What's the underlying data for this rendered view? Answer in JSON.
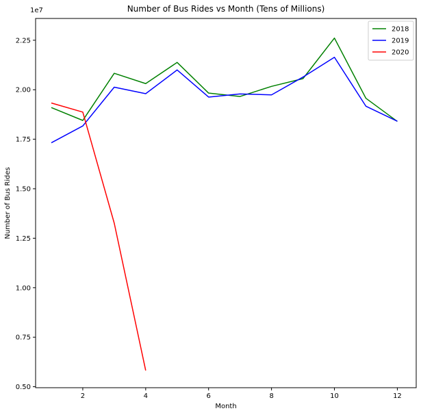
{
  "chart_data": {
    "type": "line",
    "title": "Number of Bus Rides vs Month (Tens of Millions)",
    "xlabel": "Month",
    "ylabel": "Number of Bus Rides",
    "y_offset_text": "1e7",
    "xlim": [
      0.5,
      12.6
    ],
    "ylim": [
      4950000,
      23600000
    ],
    "xticks": [
      2,
      4,
      6,
      8,
      10,
      12
    ],
    "yticks": [
      5000000,
      7500000,
      10000000,
      12500000,
      15000000,
      17500000,
      20000000,
      22500000
    ],
    "yticklabels": [
      "0.50",
      "0.75",
      "1.00",
      "1.25",
      "1.50",
      "1.75",
      "2.00",
      "2.25"
    ],
    "grid": false,
    "legend_position": "top-right",
    "series": [
      {
        "name": "2018",
        "color": "#008000",
        "x": [
          1,
          2,
          3,
          4,
          5,
          6,
          7,
          8,
          9,
          10,
          11,
          12
        ],
        "values": [
          19100000,
          18450000,
          20830000,
          20310000,
          21380000,
          19830000,
          19660000,
          20170000,
          20560000,
          22610000,
          19570000,
          18400000
        ]
      },
      {
        "name": "2019",
        "color": "#0000ff",
        "x": [
          1,
          2,
          3,
          4,
          5,
          6,
          7,
          8,
          9,
          10,
          11,
          12
        ],
        "values": [
          17320000,
          18170000,
          20130000,
          19800000,
          21000000,
          19630000,
          19790000,
          19740000,
          20640000,
          21640000,
          19170000,
          18410000
        ]
      },
      {
        "name": "2020",
        "color": "#ff0000",
        "x": [
          1,
          2,
          3,
          4
        ],
        "values": [
          19330000,
          18870000,
          13260000,
          5820000
        ]
      }
    ]
  }
}
